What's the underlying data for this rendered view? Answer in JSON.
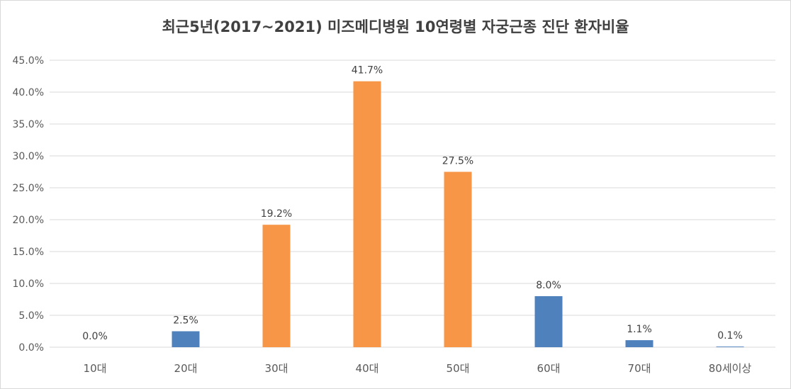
{
  "chart_data": {
    "type": "bar",
    "title": "최근5년(2017~2021) 미즈메디병원  10연령별 자궁근종 진단 환자비율",
    "categories": [
      "10대",
      "20대",
      "30대",
      "40대",
      "50대",
      "60대",
      "70대",
      "80세이상"
    ],
    "values": [
      0.0,
      2.5,
      19.2,
      41.7,
      27.5,
      8.0,
      1.1,
      0.1
    ],
    "data_labels": [
      "0.0%",
      "2.5%",
      "19.2%",
      "41.7%",
      "27.5%",
      "8.0%",
      "1.1%",
      "0.1%"
    ],
    "bar_colors": [
      "#4f81bd",
      "#4f81bd",
      "#f79646",
      "#f79646",
      "#f79646",
      "#4f81bd",
      "#4f81bd",
      "#4f81bd"
    ],
    "y_ticks": [
      "0.0%",
      "5.0%",
      "10.0%",
      "15.0%",
      "20.0%",
      "25.0%",
      "30.0%",
      "35.0%",
      "40.0%",
      "45.0%"
    ],
    "ylim": [
      0,
      45
    ],
    "ytick_step": 5,
    "grid": true,
    "legend": "none",
    "xlabel": "",
    "ylabel": ""
  }
}
